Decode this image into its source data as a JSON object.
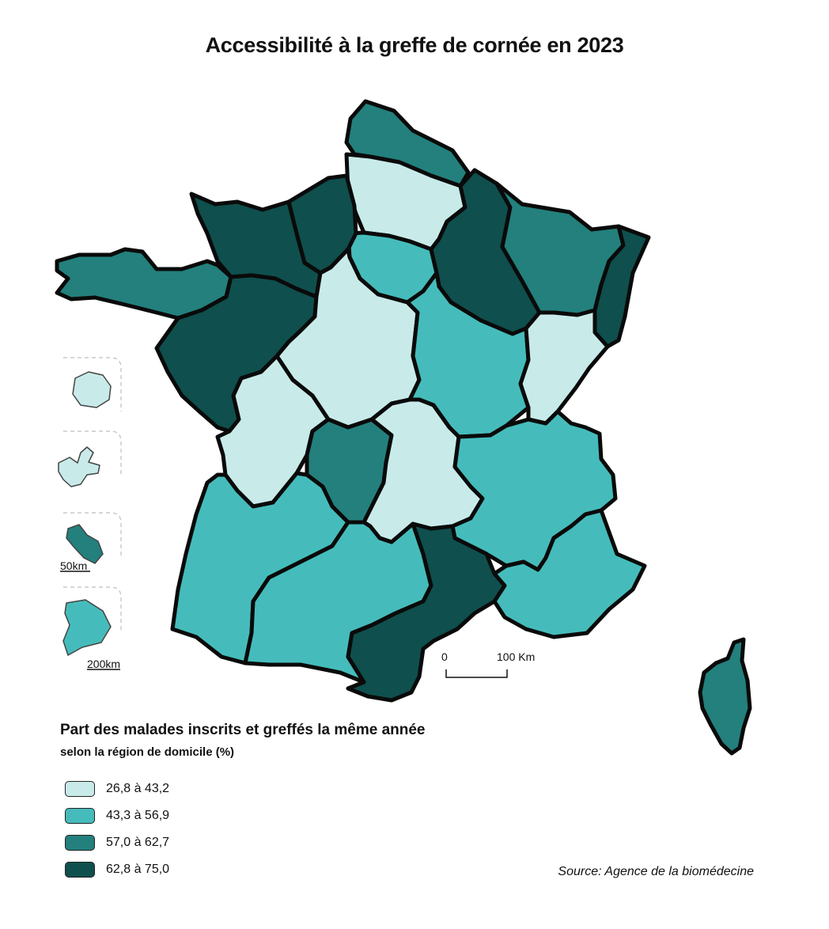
{
  "title": "Accessibilité à la greffe de cornée en 2023",
  "legend": {
    "title": "Part des malades inscrits et greffés la même année",
    "subtitle": "selon la région de domicile (%)",
    "classes": [
      {
        "label": "26,8 à 43,2",
        "color": "#c8ebea"
      },
      {
        "label": "43,3 à 56,9",
        "color": "#45bcbb"
      },
      {
        "label": "57,0 à 62,7",
        "color": "#23807d"
      },
      {
        "label": "62,8 à 75,0",
        "color": "#0f4f4d"
      }
    ]
  },
  "scale_bars": {
    "main": {
      "start": "0",
      "end": "100 Km"
    },
    "inset_martinique": "50km",
    "inset_guyane": "200km"
  },
  "source": "Source: Agence de la biomédecine"
}
